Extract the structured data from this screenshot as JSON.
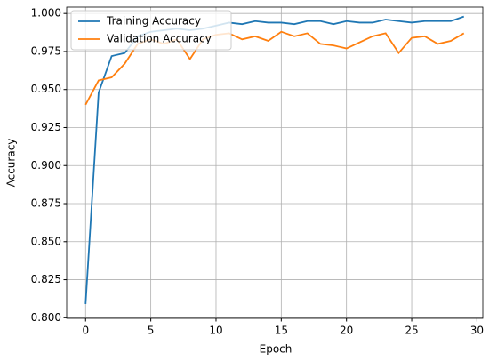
{
  "chart_data": {
    "type": "line",
    "x_label": "Epoch",
    "y_label": "Accuracy",
    "x": [
      0,
      1,
      2,
      3,
      4,
      5,
      6,
      7,
      8,
      9,
      10,
      11,
      12,
      13,
      14,
      15,
      16,
      17,
      18,
      19,
      20,
      21,
      22,
      23,
      24,
      25,
      26,
      27,
      28,
      29
    ],
    "series": [
      {
        "name": "Training Accuracy",
        "color": "#1f77b4",
        "values": [
          0.809,
          0.948,
          0.972,
          0.974,
          0.985,
          0.988,
          0.989,
          0.99,
          0.989,
          0.99,
          0.992,
          0.994,
          0.993,
          0.995,
          0.994,
          0.994,
          0.993,
          0.995,
          0.995,
          0.993,
          0.995,
          0.994,
          0.994,
          0.996,
          0.995,
          0.994,
          0.995,
          0.995,
          0.995,
          0.998
        ]
      },
      {
        "name": "Validation Accuracy",
        "color": "#ff7f0e",
        "values": [
          0.94,
          0.956,
          0.958,
          0.967,
          0.98,
          0.983,
          0.98,
          0.983,
          0.97,
          0.983,
          0.986,
          0.987,
          0.983,
          0.985,
          0.982,
          0.988,
          0.985,
          0.987,
          0.98,
          0.979,
          0.977,
          0.981,
          0.985,
          0.987,
          0.974,
          0.984,
          0.985,
          0.98,
          0.982,
          0.987
        ]
      }
    ],
    "xlim": [
      -1.45,
      30.45
    ],
    "xticks": [
      0,
      5,
      10,
      15,
      20,
      25,
      30
    ],
    "ylim": [
      0.7996,
      1.0042
    ],
    "yticks": [
      {
        "value": 0.8,
        "label": "0.800"
      },
      {
        "value": 0.825,
        "label": "0.825"
      },
      {
        "value": 0.85,
        "label": "0.850"
      },
      {
        "value": 0.875,
        "label": "0.875"
      },
      {
        "value": 0.9,
        "label": "0.900"
      },
      {
        "value": 0.925,
        "label": "0.925"
      },
      {
        "value": 0.95,
        "label": "0.950"
      },
      {
        "value": 0.975,
        "label": "0.975"
      },
      {
        "value": 1.0,
        "label": "1.000"
      }
    ],
    "grid": true,
    "legend": "upper-left"
  }
}
